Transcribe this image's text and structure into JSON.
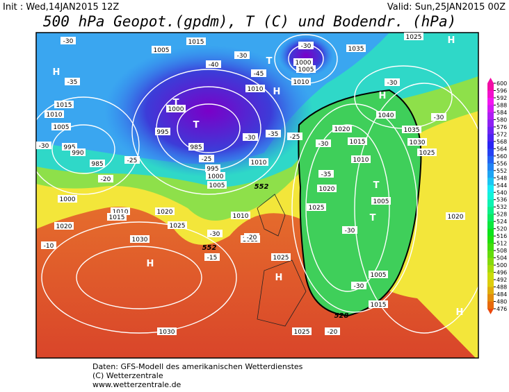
{
  "header": {
    "init": "Init : Wed,14JAN2015 12Z",
    "valid": "Valid: Sun,25JAN2015 00Z",
    "title": "500 hPa Geopot.(gpdm), T (C) und Bodendr. (hPa)"
  },
  "map": {
    "isobar_labels": [
      1005,
      1015,
      1000,
      1005,
      1010,
      1035,
      1025,
      1010,
      1000,
      995,
      985,
      995,
      1000,
      1005,
      1015,
      1010,
      1005,
      995,
      990,
      985,
      1000,
      1010,
      1015,
      1020,
      1030,
      1020,
      1025,
      1015,
      1025,
      1020,
      1015,
      1010,
      1020,
      1025,
      1005,
      1005,
      1015,
      1040,
      1035,
      1030,
      1025,
      1020,
      1030,
      1025,
      1010,
      1010
    ],
    "temperature_labels": [
      -30,
      -35,
      -30,
      -40,
      -45,
      -35,
      -30,
      -25,
      -25,
      -20,
      -30,
      -10,
      -15,
      -20,
      -30,
      -30,
      -35,
      -30,
      -30,
      -20,
      -30,
      -30,
      -30,
      -25
    ],
    "height_labels": [
      552,
      552,
      528
    ],
    "pressure_centers": [
      "H",
      "H",
      "H",
      "H",
      "H",
      "H",
      "H",
      "T",
      "T",
      "T",
      "T",
      "T"
    ]
  },
  "legend": {
    "ticks": [
      600,
      596,
      592,
      588,
      584,
      580,
      576,
      572,
      568,
      564,
      560,
      556,
      552,
      548,
      544,
      540,
      536,
      532,
      528,
      524,
      520,
      516,
      512,
      508,
      504,
      500,
      496,
      492,
      488,
      484,
      480,
      476
    ]
  },
  "footer": [
    "Daten: GFS-Modell des amerikanischen Wetterdienstes",
    "(C) Wetterzentrale",
    "www.wetterzentrale.de"
  ]
}
